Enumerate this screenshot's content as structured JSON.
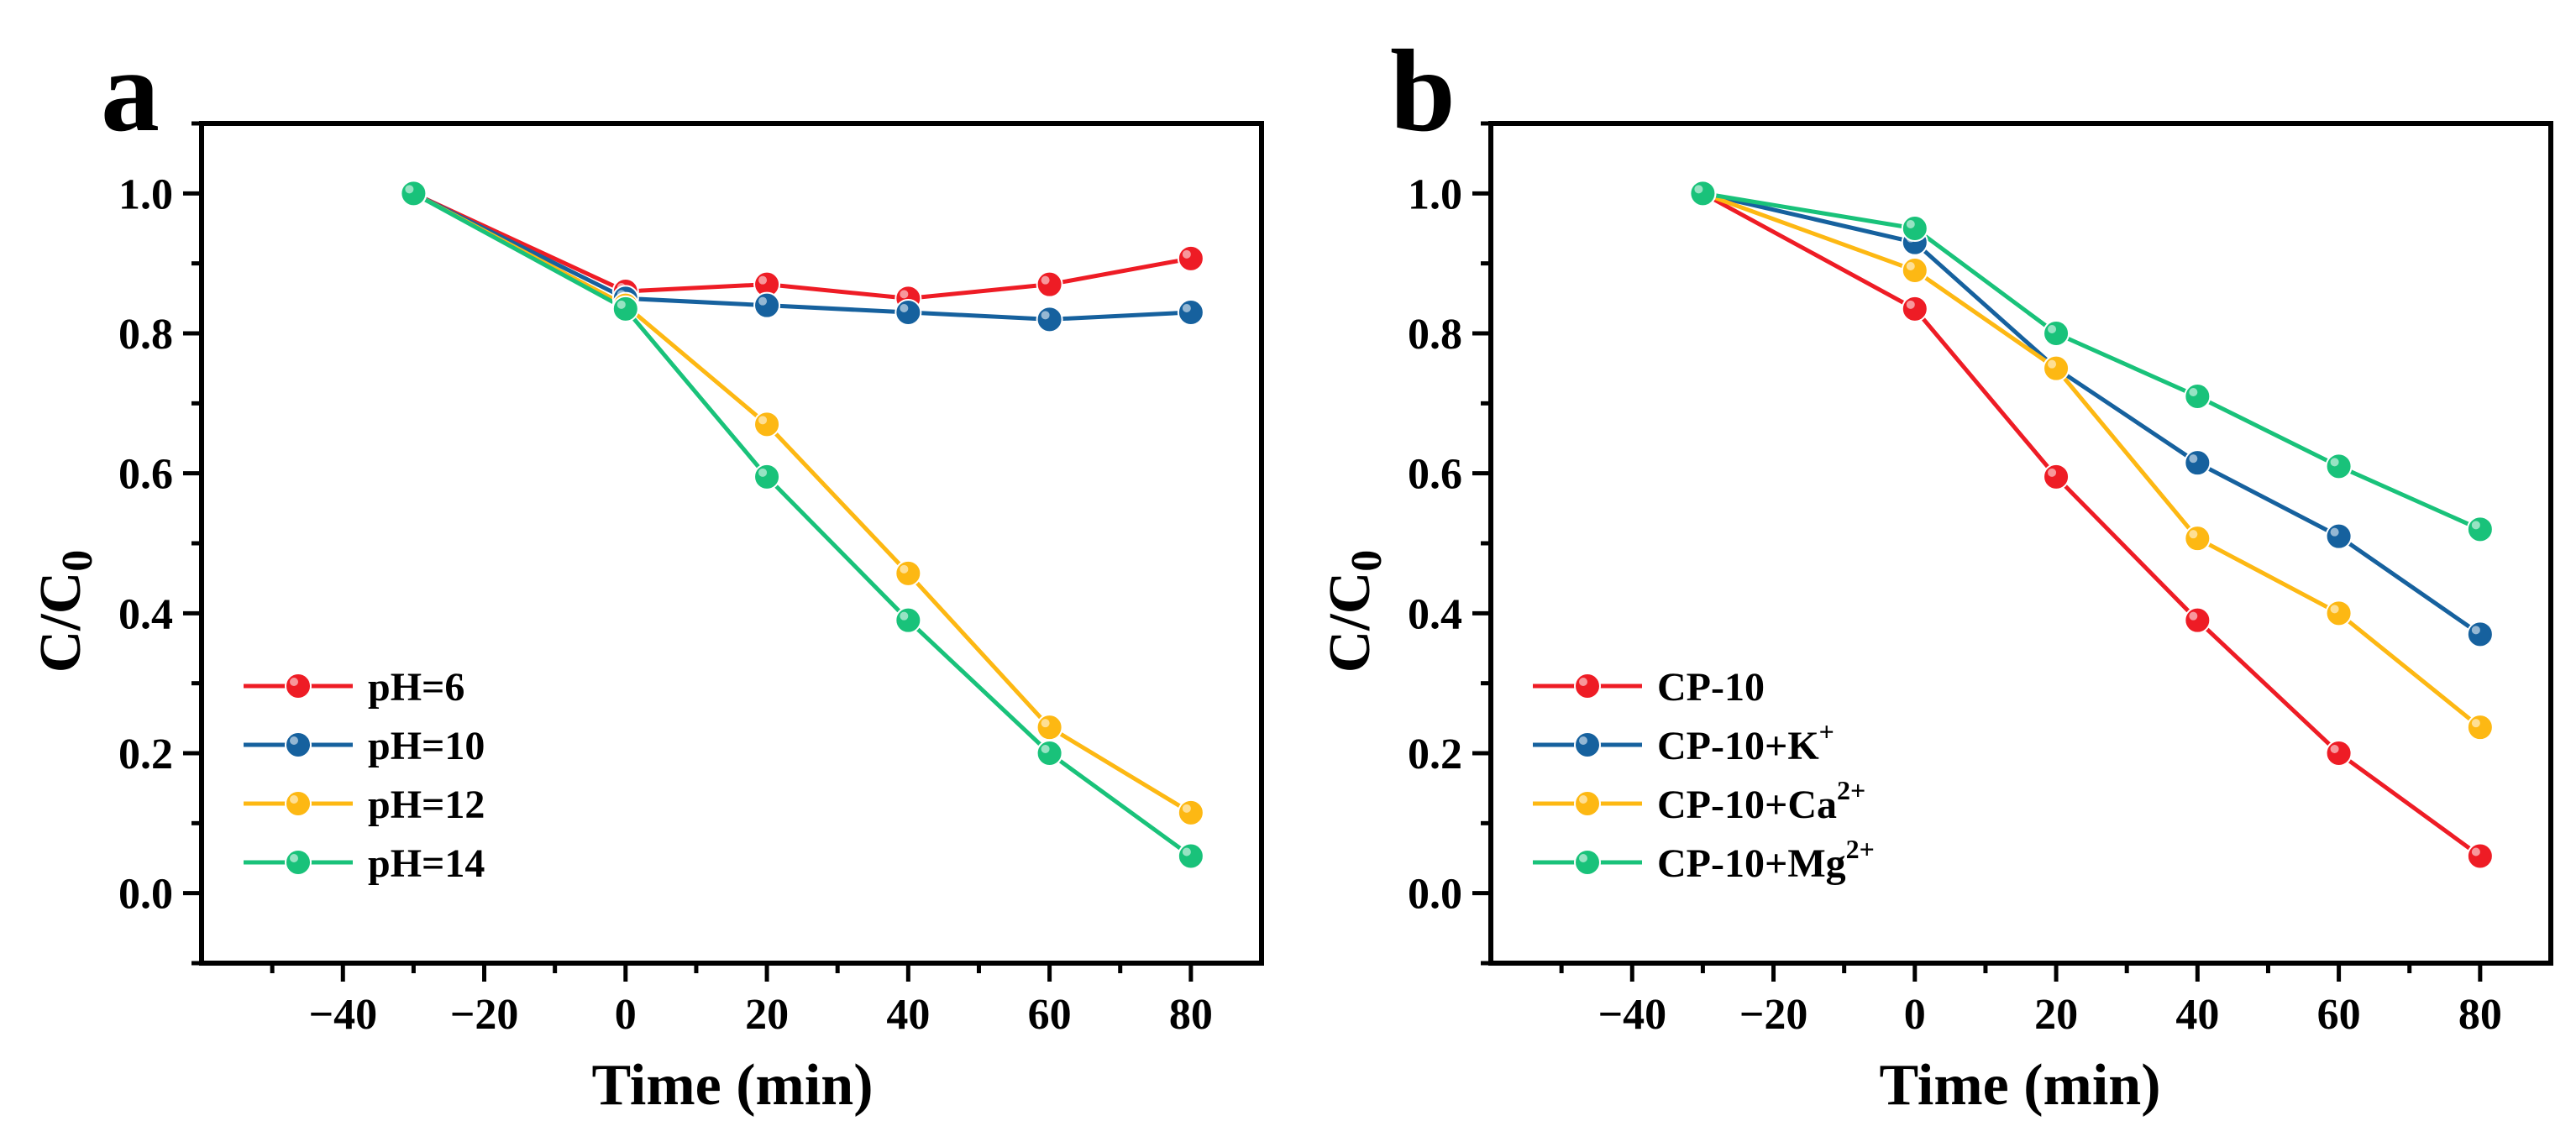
{
  "chart_data": [
    {
      "panel": "a",
      "type": "line",
      "xlabel": "Time (min)",
      "ylabel": "C/C",
      "ylabel_sub": "0",
      "xlim": [
        -60,
        90
      ],
      "ylim": [
        -0.1,
        1.1
      ],
      "xticks": [
        -40,
        -20,
        0,
        20,
        40,
        60,
        80
      ],
      "xtick_labels": [
        "−40",
        "−20",
        "0",
        "20",
        "40",
        "60",
        "80"
      ],
      "yticks": [
        0.0,
        0.2,
        0.4,
        0.6,
        0.8,
        1.0
      ],
      "ytick_labels": [
        "0.0",
        "0.2",
        "0.4",
        "0.6",
        "0.8",
        "1.0"
      ],
      "legend_position": "lower-left",
      "x": [
        -30,
        0,
        20,
        40,
        60,
        80
      ],
      "series": [
        {
          "name": "pH=6",
          "sup": "",
          "color": "#ee1c25",
          "values": [
            1.0,
            0.86,
            0.87,
            0.85,
            0.87,
            0.907
          ]
        },
        {
          "name": "pH=10",
          "sup": "",
          "color": "#16619e",
          "values": [
            1.0,
            0.85,
            0.84,
            0.83,
            0.82,
            0.83
          ]
        },
        {
          "name": "pH=12",
          "sup": "",
          "color": "#fdb813",
          "values": [
            1.0,
            0.84,
            0.67,
            0.457,
            0.237,
            0.115
          ]
        },
        {
          "name": "pH=14",
          "sup": "",
          "color": "#19c27a",
          "values": [
            1.0,
            0.835,
            0.595,
            0.39,
            0.2,
            0.053
          ]
        }
      ]
    },
    {
      "panel": "b",
      "type": "line",
      "xlabel": "Time (min)",
      "ylabel": "C/C",
      "ylabel_sub": "0",
      "xlim": [
        -60,
        90
      ],
      "ylim": [
        -0.1,
        1.1
      ],
      "xticks": [
        -40,
        -20,
        0,
        20,
        40,
        60,
        80
      ],
      "xtick_labels": [
        "−40",
        "−20",
        "0",
        "20",
        "40",
        "60",
        "80"
      ],
      "yticks": [
        0.0,
        0.2,
        0.4,
        0.6,
        0.8,
        1.0
      ],
      "ytick_labels": [
        "0.0",
        "0.2",
        "0.4",
        "0.6",
        "0.8",
        "1.0"
      ],
      "legend_position": "lower-left",
      "x": [
        -30,
        0,
        20,
        40,
        60,
        80
      ],
      "series": [
        {
          "name": "CP-10",
          "sup": "",
          "color": "#ee1c25",
          "values": [
            1.0,
            0.835,
            0.595,
            0.39,
            0.2,
            0.053
          ]
        },
        {
          "name": "CP-10+K",
          "sup": "+",
          "color": "#16619e",
          "values": [
            1.0,
            0.93,
            0.75,
            0.615,
            0.51,
            0.37
          ]
        },
        {
          "name": "CP-10+Ca",
          "sup": "2+",
          "color": "#fdb813",
          "values": [
            1.0,
            0.89,
            0.75,
            0.507,
            0.4,
            0.237
          ]
        },
        {
          "name": "CP-10+Mg",
          "sup": "2+",
          "color": "#19c27a",
          "values": [
            1.0,
            0.95,
            0.8,
            0.71,
            0.61,
            0.52
          ]
        }
      ]
    }
  ]
}
